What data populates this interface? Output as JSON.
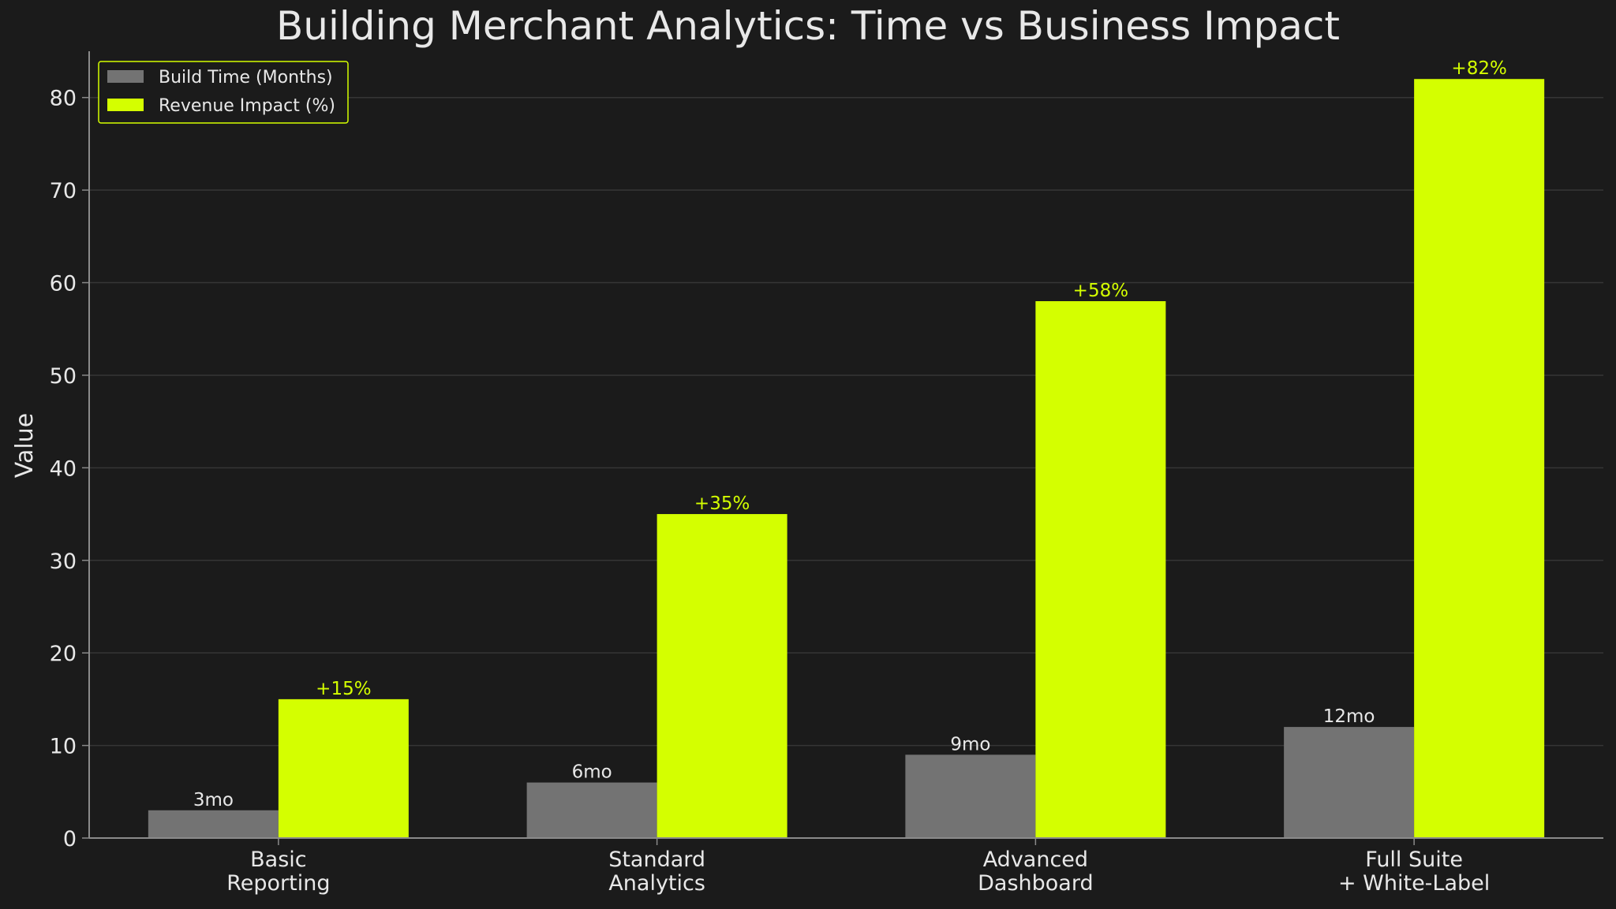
{
  "colors": {
    "background": "#1b1b1b",
    "build_time": "#737373",
    "revenue_impact": "#d4ff00",
    "text": "#e8e8e8",
    "grid": "#363636",
    "axis": "#8a8a8a"
  },
  "chart_data": {
    "type": "bar",
    "title": "Building Merchant Analytics: Time vs Business Impact",
    "xlabel": "",
    "ylabel": "Value",
    "ylim": [
      0,
      85
    ],
    "yticks": [
      0,
      10,
      20,
      30,
      40,
      50,
      60,
      70,
      80
    ],
    "grid": true,
    "legend_position": "top-left",
    "categories": [
      [
        "Basic",
        "Reporting"
      ],
      [
        "Standard",
        "Analytics"
      ],
      [
        "Advanced",
        "Dashboard"
      ],
      [
        "Full Suite",
        "+ White-Label"
      ]
    ],
    "series": [
      {
        "name": "Build Time (Months)",
        "values": [
          3,
          6,
          9,
          12
        ],
        "labels": [
          "3mo",
          "6mo",
          "9mo",
          "12mo"
        ],
        "color": "#737373",
        "label_color": "#e8e8e8"
      },
      {
        "name": "Revenue Impact (%)",
        "values": [
          15,
          35,
          58,
          82
        ],
        "labels": [
          "+15%",
          "+35%",
          "+58%",
          "+82%"
        ],
        "color": "#d4ff00",
        "label_color": "#d4ff00"
      }
    ]
  }
}
